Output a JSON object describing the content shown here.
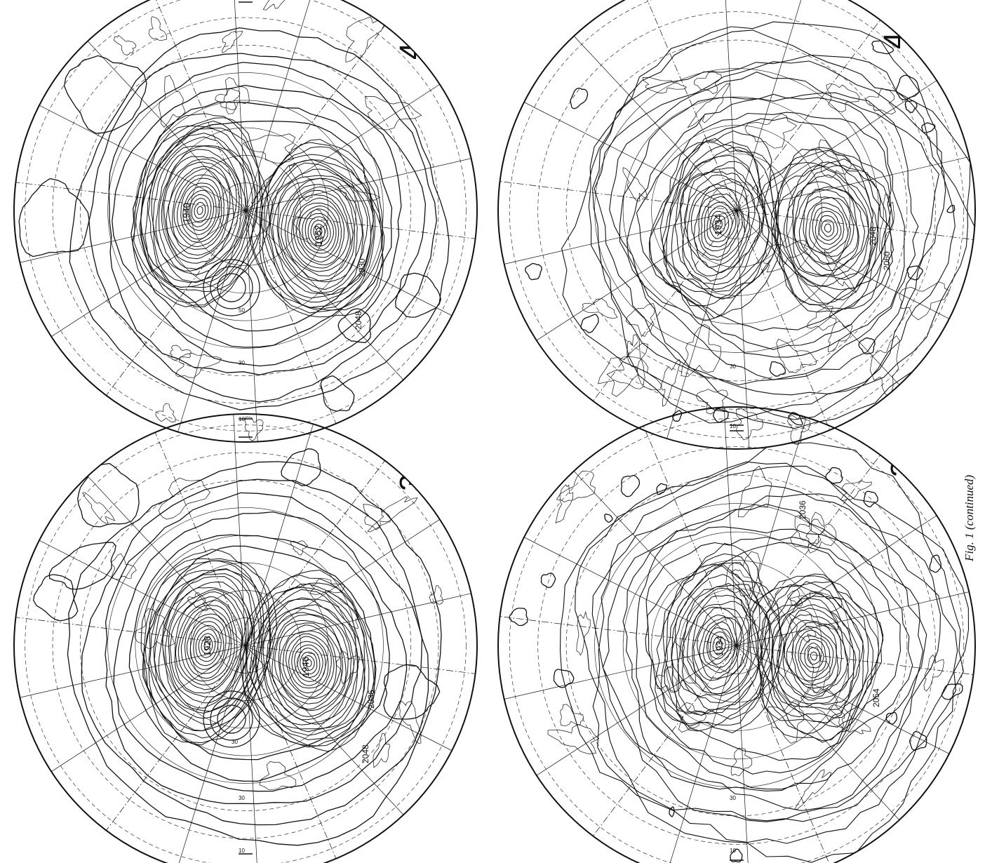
{
  "figure": {
    "caption": "Fig. 1 (continued)",
    "ink_color": "#111111",
    "background": "#ffffff"
  },
  "maps": [
    {
      "id": "top-left",
      "panel_number": "4",
      "contour_labels": [
        "1940",
        "1952",
        "2030",
        "2048"
      ],
      "lat_labels": [
        "50",
        "30",
        "10"
      ]
    },
    {
      "id": "top-right",
      "panel_number": "4",
      "contour_labels": [
        "1934",
        "2048",
        "2060"
      ],
      "lat_labels": [
        "30",
        "10"
      ]
    },
    {
      "id": "bottom-left",
      "panel_number": "3",
      "contour_labels": [
        "1928",
        "1946",
        "2036",
        "2048"
      ],
      "lat_labels": [
        "30",
        "30",
        "10"
      ]
    },
    {
      "id": "bottom-right",
      "panel_number": "3",
      "contour_labels": [
        "1934",
        "2036",
        "2054"
      ],
      "lat_labels": [
        "30",
        "10"
      ]
    }
  ]
}
